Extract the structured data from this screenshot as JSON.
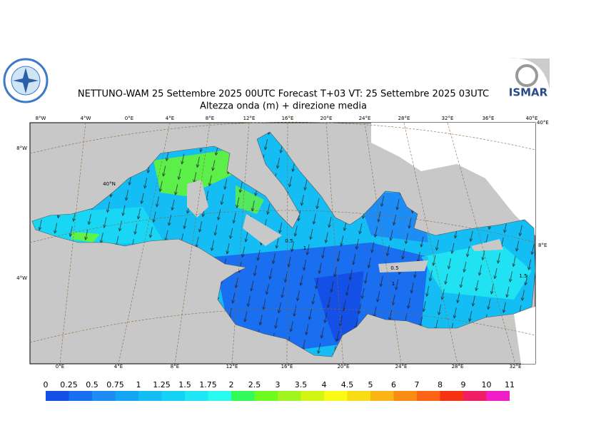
{
  "header": {
    "title": "NETTUNO-WAM  25 Settembre 2025 00UTC Forecast T+03 VT: 25 Settembre 2025 03UTC",
    "subtitle": "Altezza onda (m) + direzione media",
    "logo": "ISMAR"
  },
  "map": {
    "top_labels": [
      "8°W",
      "4°W",
      "0°E",
      "4°E",
      "8°E",
      "12°E",
      "16°E",
      "20°E",
      "24°E",
      "28°E",
      "32°E",
      "36°E",
      "40°E"
    ],
    "bottom_labels": [
      "0°E",
      "4°E",
      "8°E",
      "12°E",
      "16°E",
      "20°E",
      "24°E",
      "28°E",
      "32°E"
    ],
    "left_labels": [
      "8°W",
      "4°W"
    ],
    "right_labels": [
      "40°E",
      "8°E"
    ],
    "inner_labels": [
      "40°N",
      "0.5",
      "1",
      "0.5",
      "1",
      "1.5"
    ]
  },
  "legend": {
    "ticks": [
      0,
      0.25,
      0.5,
      0.75,
      1,
      1.25,
      1.5,
      1.75,
      2,
      2.5,
      3,
      3.5,
      4,
      4.5,
      5,
      6,
      7,
      8,
      9,
      10,
      11
    ],
    "colors": [
      "#1450e6",
      "#1a6ef0",
      "#1e8cf5",
      "#14a5f5",
      "#14bef5",
      "#14d2f5",
      "#1ee6f5",
      "#28faf0",
      "#32fa5a",
      "#6efa1e",
      "#a0f51e",
      "#d2f514",
      "#fafa14",
      "#fadc14",
      "#fab414",
      "#fa8c14",
      "#fa6414",
      "#f53214",
      "#f01e64",
      "#f01ec8"
    ]
  }
}
